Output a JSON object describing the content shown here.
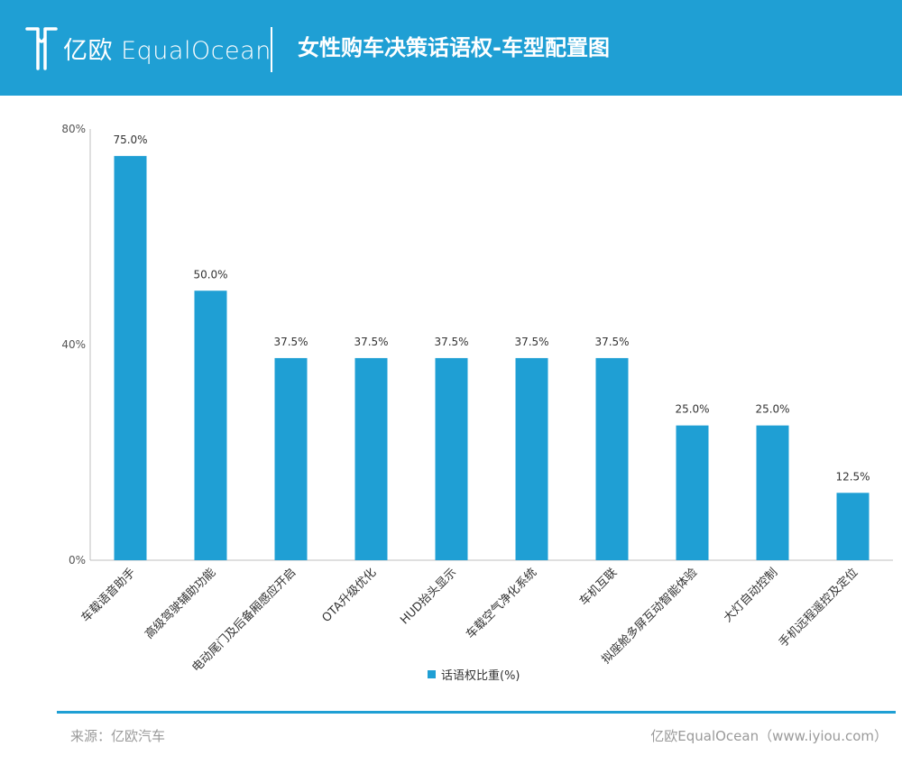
{
  "header": {
    "brand": "亿欧 EqualOcean",
    "title": "女性购车决策话语权-车型配置图"
  },
  "colors": {
    "primary": "#1f9fd4",
    "text": "#333333",
    "muted": "#9a9a9a"
  },
  "chart_data": {
    "type": "bar",
    "categories": [
      "车载语音助手",
      "高级驾驶辅助功能",
      "电动尾门及后备厢感应开启",
      "OTA升级优化",
      "HUD抬头显示",
      "车载空气净化系统",
      "车机互联",
      "拟座舱多屏互动智能体验",
      "大灯自动控制",
      "手机远程遥控及定位"
    ],
    "series": [
      {
        "name": "话语权比重(%)",
        "values": [
          75.0,
          50.0,
          37.5,
          37.5,
          37.5,
          37.5,
          37.5,
          25.0,
          25.0,
          12.5
        ]
      }
    ],
    "data_labels": [
      "75.0%",
      "50.0%",
      "37.5%",
      "37.5%",
      "37.5%",
      "37.5%",
      "37.5%",
      "25.0%",
      "25.0%",
      "12.5%"
    ],
    "y_ticks": [
      "80%",
      "40%",
      "0%"
    ],
    "ylim": [
      0,
      80
    ],
    "legend": "bottom-center",
    "grid": false
  },
  "footer": {
    "source": "来源：亿欧汽车",
    "credit": "亿欧EqualOcean（www.iyiou.com）"
  }
}
